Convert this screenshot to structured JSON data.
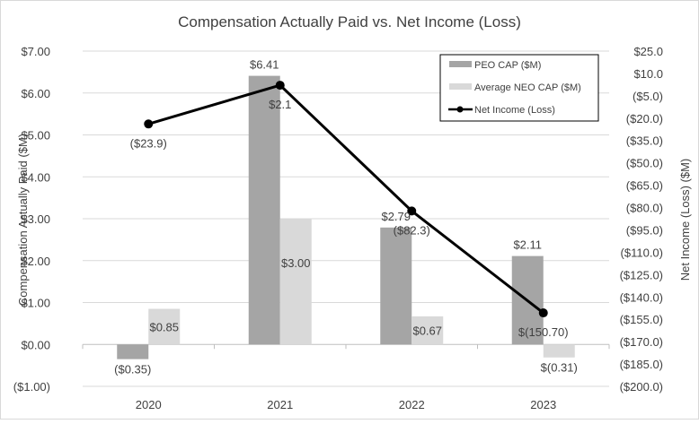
{
  "chart_data": {
    "type": "bar+line",
    "title": "Compensation Actually Paid vs. Net Income (Loss)",
    "ylabel": "Compensation Actually Paid ($M)",
    "y2label": "Net Income (Loss) ($M)",
    "categories": [
      "2020",
      "2021",
      "2022",
      "2023"
    ],
    "ylim": [
      -1,
      7
    ],
    "y2lim": [
      -200,
      25
    ],
    "yticks": [
      "($1.00)",
      "$0.00",
      "$1.00",
      "$2.00",
      "$3.00",
      "$4.00",
      "$5.00",
      "$6.00",
      "$7.00"
    ],
    "y2ticks": [
      "$25.0",
      "$10.0",
      "($5.0)",
      "($20.0)",
      "($35.0)",
      "($50.0)",
      "($65.0)",
      "($80.0)",
      "($95.0)",
      "($110.0)",
      "($125.0)",
      "($140.0)",
      "($155.0)",
      "($170.0)",
      "($185.0)",
      "($200.0)"
    ],
    "grid": true,
    "legend_position": "top-right",
    "series": [
      {
        "name": "PEO CAP ($M)",
        "type": "bar",
        "axis": "left",
        "color": "#a5a5a5",
        "values": [
          -0.35,
          6.41,
          2.79,
          2.11
        ],
        "labels": [
          "($0.35)",
          "$6.41",
          "$2.79",
          "$2.11"
        ]
      },
      {
        "name": "Average NEO CAP ($M)",
        "type": "bar",
        "axis": "left",
        "color": "#d9d9d9",
        "values": [
          0.85,
          3.0,
          0.67,
          -0.31
        ],
        "labels": [
          "$0.85",
          "$3.00",
          "$0.67",
          "$(0.31)"
        ]
      },
      {
        "name": "Net Income (Loss)",
        "type": "line",
        "axis": "right",
        "color": "#000000",
        "values": [
          -23.9,
          2.1,
          -82.3,
          -150.7
        ],
        "labels": [
          "($23.9)",
          "$2.1",
          "($82.3)",
          "$(150.70)"
        ]
      }
    ]
  }
}
